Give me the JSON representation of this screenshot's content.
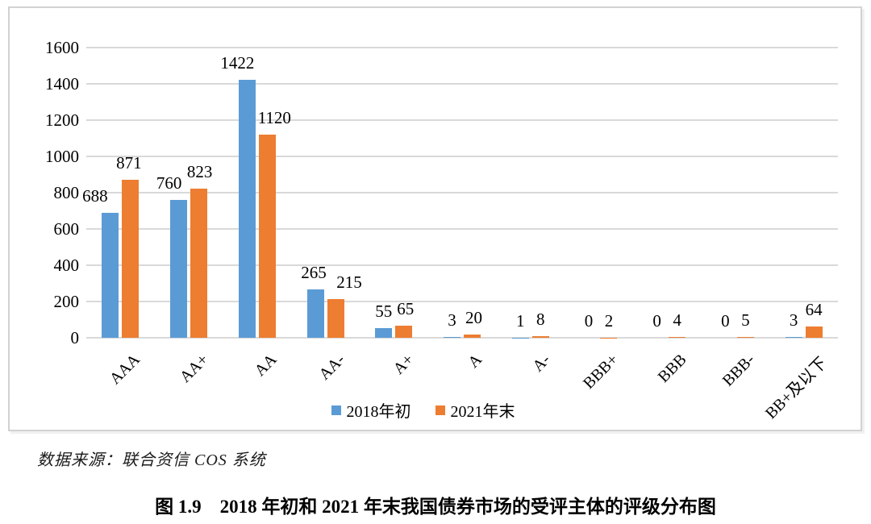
{
  "chart_data": {
    "type": "bar",
    "categories": [
      "AAA",
      "AA+",
      "AA",
      "AA-",
      "A+",
      "A",
      "A-",
      "BBB+",
      "BBB",
      "BBB-",
      "BB+及以下"
    ],
    "series": [
      {
        "name": "2018年初",
        "color": "#5B9BD5",
        "values": [
          688,
          760,
          1422,
          265,
          55,
          3,
          1,
          0,
          0,
          0,
          3
        ]
      },
      {
        "name": "2021年末",
        "color": "#ED7D31",
        "values": [
          871,
          823,
          1120,
          215,
          65,
          20,
          8,
          2,
          4,
          5,
          64
        ]
      }
    ],
    "title": "",
    "xlabel": "",
    "ylabel": "",
    "ylim": [
      0,
      1600
    ],
    "yticks": [
      0,
      200,
      400,
      600,
      800,
      1000,
      1200,
      1400,
      1600
    ],
    "grid": true,
    "legend_position": "bottom",
    "data_labels": true,
    "gridline_color": "#d9d9d9"
  },
  "footer": {
    "source_note": "数据来源：联合资信 COS 系统",
    "caption": "图 1.9　2018 年初和 2021 年末我国债券市场的受评主体的评级分布图"
  }
}
